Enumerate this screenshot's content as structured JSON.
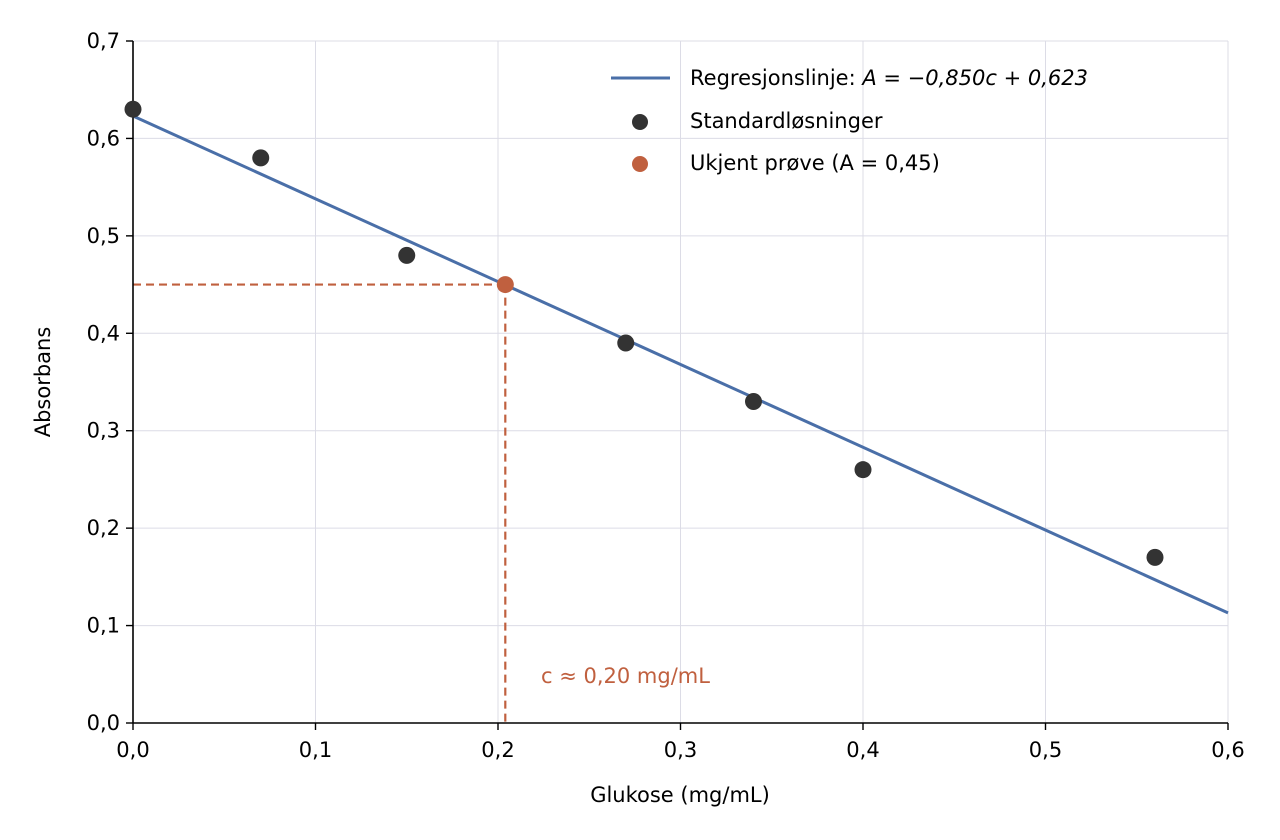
{
  "chart_data": {
    "type": "scatter",
    "xlabel": "Glukose (mg/mL)",
    "ylabel": "Absorbans",
    "xlim": [
      0,
      0.6
    ],
    "ylim": [
      0,
      0.7
    ],
    "x_ticks": [
      0,
      0.1,
      0.2,
      0.3,
      0.4,
      0.5,
      0.6
    ],
    "y_ticks": [
      0,
      0.1,
      0.2,
      0.3,
      0.4,
      0.5,
      0.6,
      0.7
    ],
    "x_tick_labels": [
      "0,0",
      "0,1",
      "0,2",
      "0,3",
      "0,4",
      "0,5",
      "0,6"
    ],
    "y_tick_labels": [
      "0,0",
      "0,1",
      "0,2",
      "0,3",
      "0,4",
      "0,5",
      "0,6",
      "0,7"
    ],
    "grid": true,
    "legend_position": "top-right",
    "regression": {
      "slope": -0.85,
      "intercept": 0.623,
      "label_prefix": "Regresjonslinje: ",
      "label_formula": "A = −0,850c + 0,623",
      "color": "#4a6fa8"
    },
    "series": [
      {
        "name": "Standardløsninger",
        "color": "#333333",
        "x": [
          0.0,
          0.07,
          0.15,
          0.27,
          0.34,
          0.4,
          0.56
        ],
        "y": [
          0.63,
          0.58,
          0.48,
          0.39,
          0.33,
          0.26,
          0.17
        ]
      },
      {
        "name": "Ukjent prøve (A = 0,45)",
        "color": "#c0603f",
        "x": [
          0.204
        ],
        "y": [
          0.45
        ]
      }
    ],
    "legend": {
      "regression_label_prefix": "Regresjonslinje: ",
      "regression_label_formula": "A = −0,850c + 0,623",
      "standard_label": "Standardløsninger",
      "unknown_label": "Ukjent prøve (A = 0,45)"
    },
    "annotation": {
      "text": "c ≈ 0,20 mg/mL",
      "color": "#c0603f",
      "x": 0.204,
      "y": 0.45
    }
  }
}
